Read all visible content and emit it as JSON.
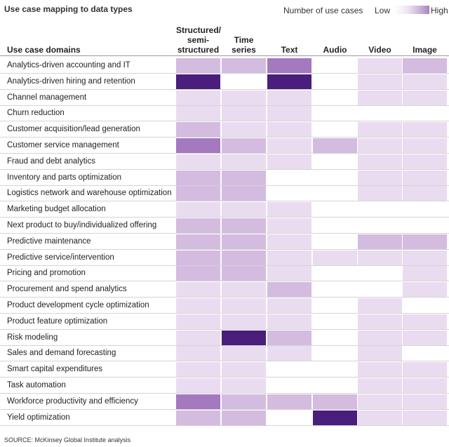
{
  "chart_data": {
    "type": "table",
    "title": "Use case mapping to data types",
    "legend": {
      "label": "Number of use cases",
      "low": "Low",
      "high": "High"
    },
    "row_header": "Use case domains",
    "columns": [
      {
        "key": "structured",
        "label_lines": [
          "Structured/",
          "semi-",
          "structured"
        ]
      },
      {
        "key": "timeseries",
        "label_lines": [
          "Time",
          "series"
        ]
      },
      {
        "key": "text",
        "label_lines": [
          "Text"
        ]
      },
      {
        "key": "audio",
        "label_lines": [
          "Audio"
        ]
      },
      {
        "key": "video",
        "label_lines": [
          "Video"
        ]
      },
      {
        "key": "image",
        "label_lines": [
          "Image"
        ]
      }
    ],
    "scale_note": "intensity 0 (none) to 5 (high)",
    "rows": [
      {
        "label": "Analytics-driven accounting and IT",
        "values": [
          2,
          2,
          3,
          0,
          1,
          2
        ]
      },
      {
        "label": "Analytics-driven hiring and retention",
        "values": [
          5,
          0,
          5,
          0,
          1,
          1
        ]
      },
      {
        "label": "Channel management",
        "values": [
          1,
          1,
          1,
          0,
          1,
          1
        ]
      },
      {
        "label": "Churn reduction",
        "values": [
          1,
          1,
          1,
          0,
          0,
          0
        ]
      },
      {
        "label": "Customer acquisition/lead generation",
        "values": [
          2,
          1,
          1,
          0,
          1,
          1
        ]
      },
      {
        "label": "Customer service management",
        "values": [
          3,
          2,
          1,
          2,
          1,
          1
        ]
      },
      {
        "label": "Fraud and debt analytics",
        "values": [
          1,
          1,
          1,
          0,
          1,
          1
        ]
      },
      {
        "label": "Inventory and parts optimization",
        "values": [
          2,
          2,
          0,
          0,
          1,
          1
        ]
      },
      {
        "label": "Logistics network and warehouse optimization",
        "values": [
          2,
          2,
          0,
          0,
          1,
          1
        ]
      },
      {
        "label": "Marketing budget allocation",
        "values": [
          1,
          1,
          1,
          0,
          0,
          0
        ]
      },
      {
        "label": "Next product to buy/individualized offering",
        "values": [
          2,
          2,
          1,
          0,
          0,
          0
        ]
      },
      {
        "label": "Predictive maintenance",
        "values": [
          2,
          2,
          1,
          0,
          2,
          2
        ]
      },
      {
        "label": "Predictive service/intervention",
        "values": [
          2,
          2,
          1,
          1,
          1,
          1
        ]
      },
      {
        "label": "Pricing and promotion",
        "values": [
          2,
          2,
          1,
          0,
          0,
          1
        ]
      },
      {
        "label": "Procurement and spend analytics",
        "values": [
          1,
          1,
          2,
          0,
          0,
          1
        ]
      },
      {
        "label": "Product development cycle optimization",
        "values": [
          1,
          1,
          1,
          0,
          1,
          0
        ]
      },
      {
        "label": "Product feature optimization",
        "values": [
          1,
          1,
          1,
          0,
          1,
          1
        ]
      },
      {
        "label": "Risk modeling",
        "values": [
          1,
          5,
          2,
          0,
          1,
          1
        ]
      },
      {
        "label": "Sales and demand forecasting",
        "values": [
          1,
          1,
          1,
          0,
          1,
          0
        ]
      },
      {
        "label": "Smart capital expenditures",
        "values": [
          1,
          1,
          0,
          0,
          1,
          1
        ]
      },
      {
        "label": "Task automation",
        "values": [
          1,
          1,
          0,
          0,
          1,
          1
        ]
      },
      {
        "label": "Workforce productivity and efficiency",
        "values": [
          3,
          2,
          2,
          2,
          1,
          1
        ]
      },
      {
        "label": "Yield optimization",
        "values": [
          2,
          2,
          0,
          5,
          1,
          1
        ]
      }
    ],
    "source": "McKinsey Global Institute analysis",
    "source_label": "SOURCE:"
  },
  "colors": {
    "level_0": "#ffffff",
    "level_1": "#eadcf0",
    "level_2": "#d3bce0",
    "level_3": "#a479bf",
    "level_4": "#7c4aa3",
    "level_5": "#4a1e7c"
  }
}
